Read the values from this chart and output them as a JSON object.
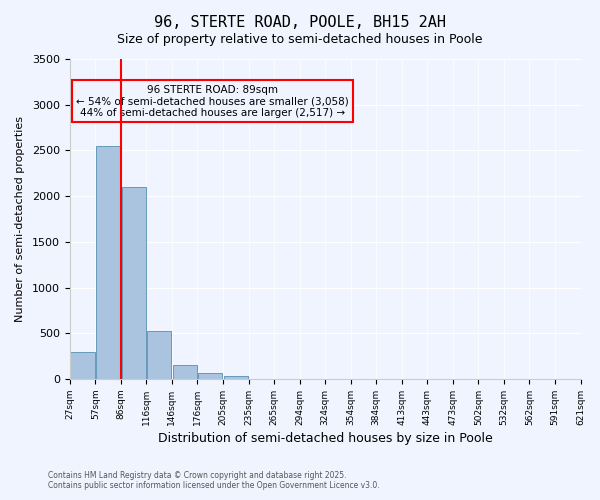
{
  "title": "96, STERTE ROAD, POOLE, BH15 2AH",
  "subtitle": "Size of property relative to semi-detached houses in Poole",
  "xlabel": "Distribution of semi-detached houses by size in Poole",
  "ylabel": "Number of semi-detached properties",
  "bin_labels": [
    "27sqm",
    "57sqm",
    "86sqm",
    "116sqm",
    "146sqm",
    "176sqm",
    "205sqm",
    "235sqm",
    "265sqm",
    "294sqm",
    "324sqm",
    "354sqm",
    "384sqm",
    "413sqm",
    "443sqm",
    "473sqm",
    "502sqm",
    "532sqm",
    "562sqm",
    "591sqm",
    "621sqm"
  ],
  "bar_values": [
    300,
    2550,
    2100,
    530,
    155,
    65,
    35,
    0,
    0,
    0,
    0,
    0,
    0,
    0,
    0,
    0,
    0,
    0,
    0,
    0
  ],
  "bar_color": "#aac4e0",
  "bar_edge_color": "#6699bb",
  "property_line_x": 2,
  "property_sqm": 89,
  "property_label": "96 STERTE ROAD: 89sqm",
  "pct_smaller": 54,
  "pct_smaller_n": "3,058",
  "pct_larger": 44,
  "pct_larger_n": "2,517",
  "vline_color": "red",
  "ylim": [
    0,
    3500
  ],
  "yticks": [
    0,
    500,
    1000,
    1500,
    2000,
    2500,
    3000,
    3500
  ],
  "annotation_box_color": "red",
  "background_color": "#f0f4ff",
  "footer_line1": "Contains HM Land Registry data © Crown copyright and database right 2025.",
  "footer_line2": "Contains public sector information licensed under the Open Government Licence v3.0."
}
